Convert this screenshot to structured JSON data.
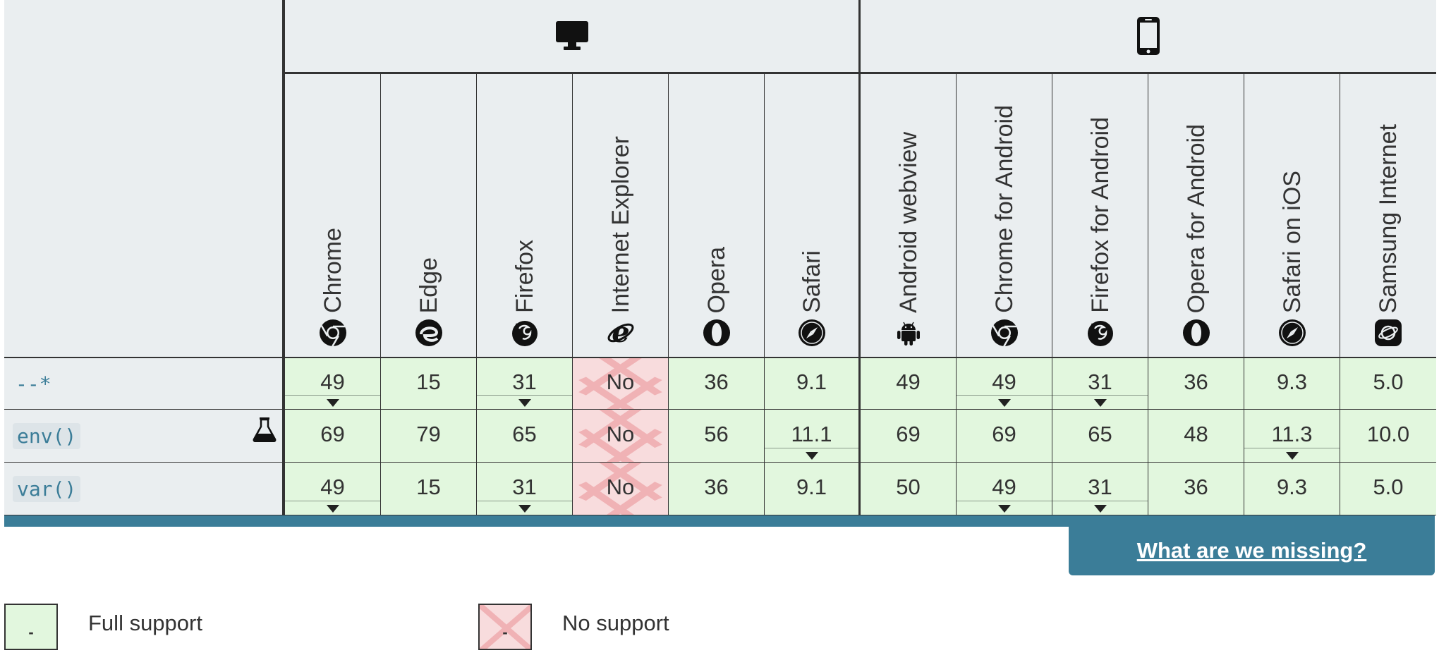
{
  "platforms": {
    "desktop_icon": "desktop-icon",
    "mobile_icon": "mobile-phone-icon"
  },
  "browsers": [
    {
      "name": "Chrome",
      "icon": "chrome-icon",
      "group": "desktop"
    },
    {
      "name": "Edge",
      "icon": "edge-icon",
      "group": "desktop"
    },
    {
      "name": "Firefox",
      "icon": "firefox-icon",
      "group": "desktop"
    },
    {
      "name": "Internet Explorer",
      "icon": "internet-explorer-icon",
      "group": "desktop"
    },
    {
      "name": "Opera",
      "icon": "opera-icon",
      "group": "desktop"
    },
    {
      "name": "Safari",
      "icon": "safari-icon",
      "group": "desktop"
    },
    {
      "name": "Android webview",
      "icon": "android-icon",
      "group": "mobile"
    },
    {
      "name": "Chrome for Android",
      "icon": "chrome-icon",
      "group": "mobile"
    },
    {
      "name": "Firefox for Android",
      "icon": "firefox-icon",
      "group": "mobile"
    },
    {
      "name": "Opera for Android",
      "icon": "opera-icon",
      "group": "mobile"
    },
    {
      "name": "Safari on iOS",
      "icon": "safari-icon",
      "group": "mobile"
    },
    {
      "name": "Samsung Internet",
      "icon": "samsung-internet-icon",
      "group": "mobile"
    }
  ],
  "features": [
    {
      "name": "--*",
      "code_style": "plain",
      "experimental": false,
      "values": [
        {
          "v": "49",
          "support": "full",
          "notes": true
        },
        {
          "v": "15",
          "support": "full",
          "notes": false
        },
        {
          "v": "31",
          "support": "full",
          "notes": true
        },
        {
          "v": "No",
          "support": "none",
          "notes": false
        },
        {
          "v": "36",
          "support": "full",
          "notes": false
        },
        {
          "v": "9.1",
          "support": "full",
          "notes": false
        },
        {
          "v": "49",
          "support": "full",
          "notes": false
        },
        {
          "v": "49",
          "support": "full",
          "notes": true
        },
        {
          "v": "31",
          "support": "full",
          "notes": true
        },
        {
          "v": "36",
          "support": "full",
          "notes": false
        },
        {
          "v": "9.3",
          "support": "full",
          "notes": false
        },
        {
          "v": "5.0",
          "support": "full",
          "notes": false
        }
      ]
    },
    {
      "name": "env()",
      "code_style": "boxed",
      "experimental": true,
      "values": [
        {
          "v": "69",
          "support": "full",
          "notes": false
        },
        {
          "v": "79",
          "support": "full",
          "notes": false
        },
        {
          "v": "65",
          "support": "full",
          "notes": false
        },
        {
          "v": "No",
          "support": "none",
          "notes": false
        },
        {
          "v": "56",
          "support": "full",
          "notes": false
        },
        {
          "v": "11.1",
          "support": "full",
          "notes": true
        },
        {
          "v": "69",
          "support": "full",
          "notes": false
        },
        {
          "v": "69",
          "support": "full",
          "notes": false
        },
        {
          "v": "65",
          "support": "full",
          "notes": false
        },
        {
          "v": "48",
          "support": "full",
          "notes": false
        },
        {
          "v": "11.3",
          "support": "full",
          "notes": true
        },
        {
          "v": "10.0",
          "support": "full",
          "notes": false
        }
      ]
    },
    {
      "name": "var()",
      "code_style": "boxed",
      "experimental": false,
      "values": [
        {
          "v": "49",
          "support": "full",
          "notes": true
        },
        {
          "v": "15",
          "support": "full",
          "notes": false
        },
        {
          "v": "31",
          "support": "full",
          "notes": true
        },
        {
          "v": "No",
          "support": "none",
          "notes": false
        },
        {
          "v": "36",
          "support": "full",
          "notes": false
        },
        {
          "v": "9.1",
          "support": "full",
          "notes": false
        },
        {
          "v": "50",
          "support": "full",
          "notes": false
        },
        {
          "v": "49",
          "support": "full",
          "notes": true
        },
        {
          "v": "31",
          "support": "full",
          "notes": true
        },
        {
          "v": "36",
          "support": "full",
          "notes": false
        },
        {
          "v": "9.3",
          "support": "full",
          "notes": false
        },
        {
          "v": "5.0",
          "support": "full",
          "notes": false
        }
      ]
    }
  ],
  "missing_link": "What are we missing?",
  "legend": {
    "full_label": "Full support",
    "none_label": "No support",
    "box_text": "-"
  },
  "colors": {
    "full_support_bg": "#e2f7de",
    "no_support_bg": "#f8dcdd",
    "header_bg": "#eaeef0",
    "accent": "#3b7d98"
  }
}
